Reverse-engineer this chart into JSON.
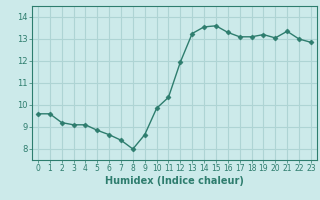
{
  "x": [
    0,
    1,
    2,
    3,
    4,
    5,
    6,
    7,
    8,
    9,
    10,
    11,
    12,
    13,
    14,
    15,
    16,
    17,
    18,
    19,
    20,
    21,
    22,
    23
  ],
  "y": [
    9.6,
    9.6,
    9.2,
    9.1,
    9.1,
    8.85,
    8.65,
    8.4,
    8.0,
    8.65,
    9.85,
    10.35,
    11.95,
    13.25,
    13.55,
    13.6,
    13.3,
    13.1,
    13.1,
    13.2,
    13.05,
    13.35,
    13.0,
    12.85
  ],
  "line_color": "#2e7d6e",
  "marker": "D",
  "marker_size": 2.5,
  "bg_color": "#cceaea",
  "grid_color": "#aed4d4",
  "tick_color": "#2e7d6e",
  "label_color": "#2e7d6e",
  "xlabel": "Humidex (Indice chaleur)",
  "xlabel_fontsize": 7,
  "xlim": [
    -0.5,
    23.5
  ],
  "ylim": [
    7.5,
    14.5
  ],
  "yticks": [
    8,
    9,
    10,
    11,
    12,
    13,
    14
  ],
  "xticks": [
    0,
    1,
    2,
    3,
    4,
    5,
    6,
    7,
    8,
    9,
    10,
    11,
    12,
    13,
    14,
    15,
    16,
    17,
    18,
    19,
    20,
    21,
    22,
    23
  ]
}
